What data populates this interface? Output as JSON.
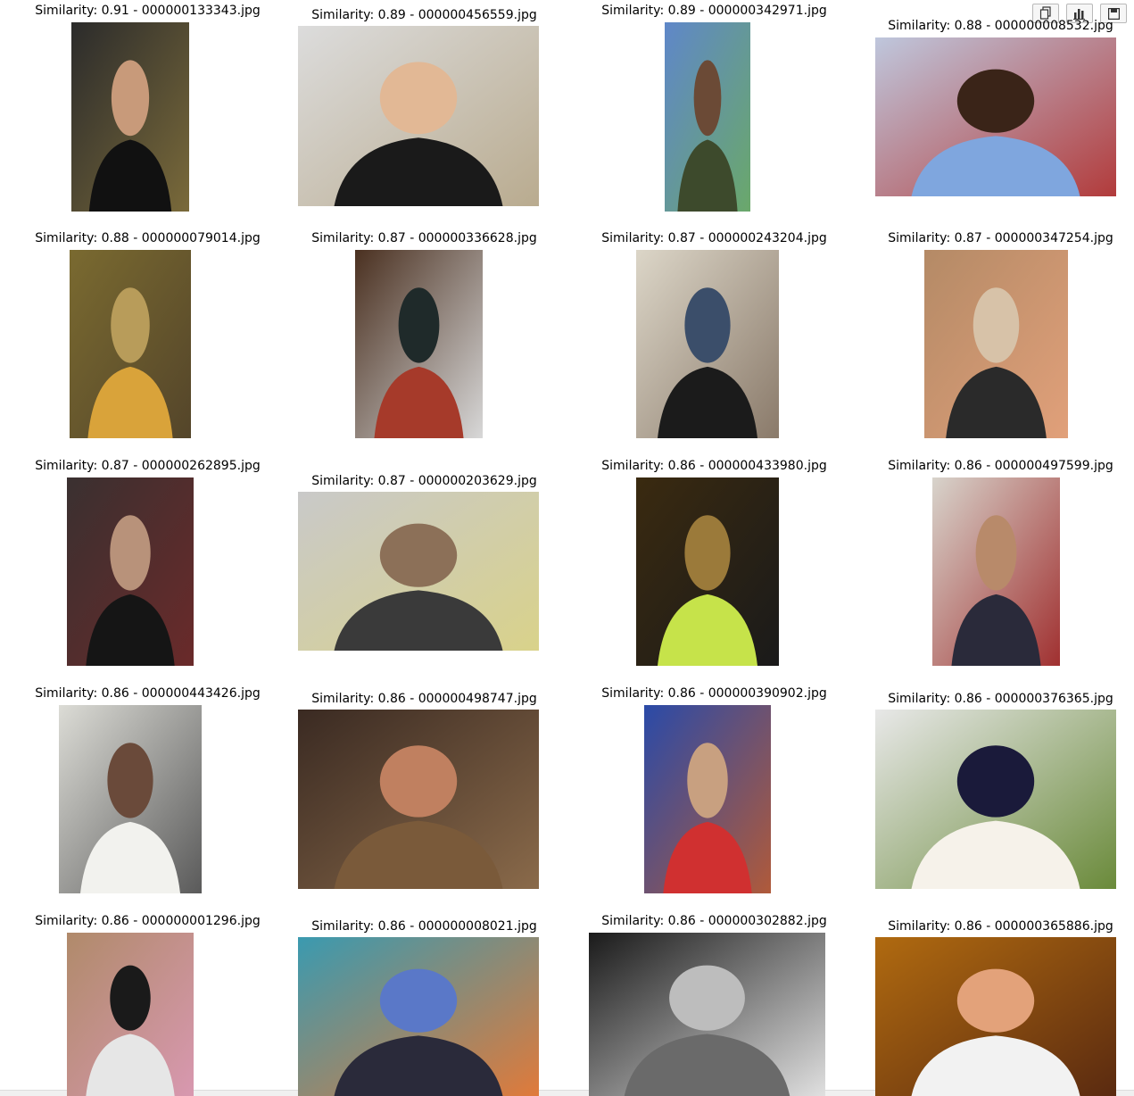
{
  "toolbar": {
    "icons": [
      "copy-icon",
      "bar-chart-icon",
      "save-icon"
    ]
  },
  "results": [
    {
      "caption": "Similarity: 0.91 - 000000133343.jpg",
      "palette": [
        "#2b2b2b",
        "#c89a7a",
        "#111111",
        "#7a6a3a"
      ]
    },
    {
      "caption": "Similarity: 0.89 - 000000456559.jpg",
      "palette": [
        "#dcdcdc",
        "#e2b895",
        "#1a1a1a",
        "#b9ab8f"
      ]
    },
    {
      "caption": "Similarity: 0.89 - 000000342971.jpg",
      "palette": [
        "#5f87c9",
        "#6b4a36",
        "#3d4a2c",
        "#6aa86a"
      ]
    },
    {
      "caption": "Similarity: 0.88 - 000000008532.jpg",
      "palette": [
        "#bfc7dd",
        "#3a2418",
        "#7fa6de",
        "#b23b3b"
      ]
    },
    {
      "caption": "Similarity: 0.88 - 000000079014.jpg",
      "palette": [
        "#7a6a30",
        "#b89c5a",
        "#d9a33a",
        "#54452a"
      ]
    },
    {
      "caption": "Similarity: 0.87 - 000000336628.jpg",
      "palette": [
        "#4a3020",
        "#1f2a2a",
        "#a63a2a",
        "#d8d8d8"
      ]
    },
    {
      "caption": "Similarity: 0.87 - 000000243204.jpg",
      "palette": [
        "#dcd6c8",
        "#3b4e6a",
        "#1b1b1b",
        "#8a7a6a"
      ]
    },
    {
      "caption": "Similarity: 0.87 - 000000347254.jpg",
      "palette": [
        "#b48a66",
        "#d7c2a8",
        "#2a2a2a",
        "#e1a07a"
      ]
    },
    {
      "caption": "Similarity: 0.87 - 000000262895.jpg",
      "palette": [
        "#3a3030",
        "#b8927a",
        "#151515",
        "#6a2a2a"
      ]
    },
    {
      "caption": "Similarity: 0.87 - 000000203629.jpg",
      "palette": [
        "#c9c9c9",
        "#8c7058",
        "#3a3a3a",
        "#d9d28a"
      ]
    },
    {
      "caption": "Similarity: 0.86 - 000000433980.jpg",
      "palette": [
        "#3a2a10",
        "#9b7a3a",
        "#c6e34a",
        "#1a1a1a"
      ]
    },
    {
      "caption": "Similarity: 0.86 - 000000497599.jpg",
      "palette": [
        "#d8d4cc",
        "#b88a6a",
        "#2a2a3a",
        "#a03030"
      ]
    },
    {
      "caption": "Similarity: 0.86 - 000000443426.jpg",
      "palette": [
        "#dcdcd6",
        "#6a4a3a",
        "#f2f2ee",
        "#5a5a5a"
      ]
    },
    {
      "caption": "Similarity: 0.86 - 000000498747.jpg",
      "palette": [
        "#3a2a22",
        "#c08060",
        "#7a5a3a",
        "#8a6a4a"
      ]
    },
    {
      "caption": "Similarity: 0.86 - 000000390902.jpg",
      "palette": [
        "#2a4aa8",
        "#c8a080",
        "#d03030",
        "#b05a3a"
      ]
    },
    {
      "caption": "Similarity: 0.86 - 000000376365.jpg",
      "palette": [
        "#e8e8e8",
        "#1a1a3a",
        "#f6f2ea",
        "#6a8a3a"
      ]
    },
    {
      "caption": "Similarity: 0.86 - 000000001296.jpg",
      "palette": [
        "#b08a6a",
        "#1a1a1a",
        "#e6e6e6",
        "#d898b0"
      ]
    },
    {
      "caption": "Similarity: 0.86 - 000000008021.jpg",
      "palette": [
        "#3a9ab0",
        "#5a78c8",
        "#2a2a3a",
        "#e07a3a"
      ]
    },
    {
      "caption": "Similarity: 0.86 - 000000302882.jpg",
      "palette": [
        "#1a1a1a",
        "#bdbdbd",
        "#6a6a6a",
        "#e0e0e0"
      ]
    },
    {
      "caption": "Similarity: 0.86 - 000000365886.jpg",
      "palette": [
        "#b06a10",
        "#e3a27a",
        "#f2f2f2",
        "#5a2a10"
      ]
    }
  ]
}
